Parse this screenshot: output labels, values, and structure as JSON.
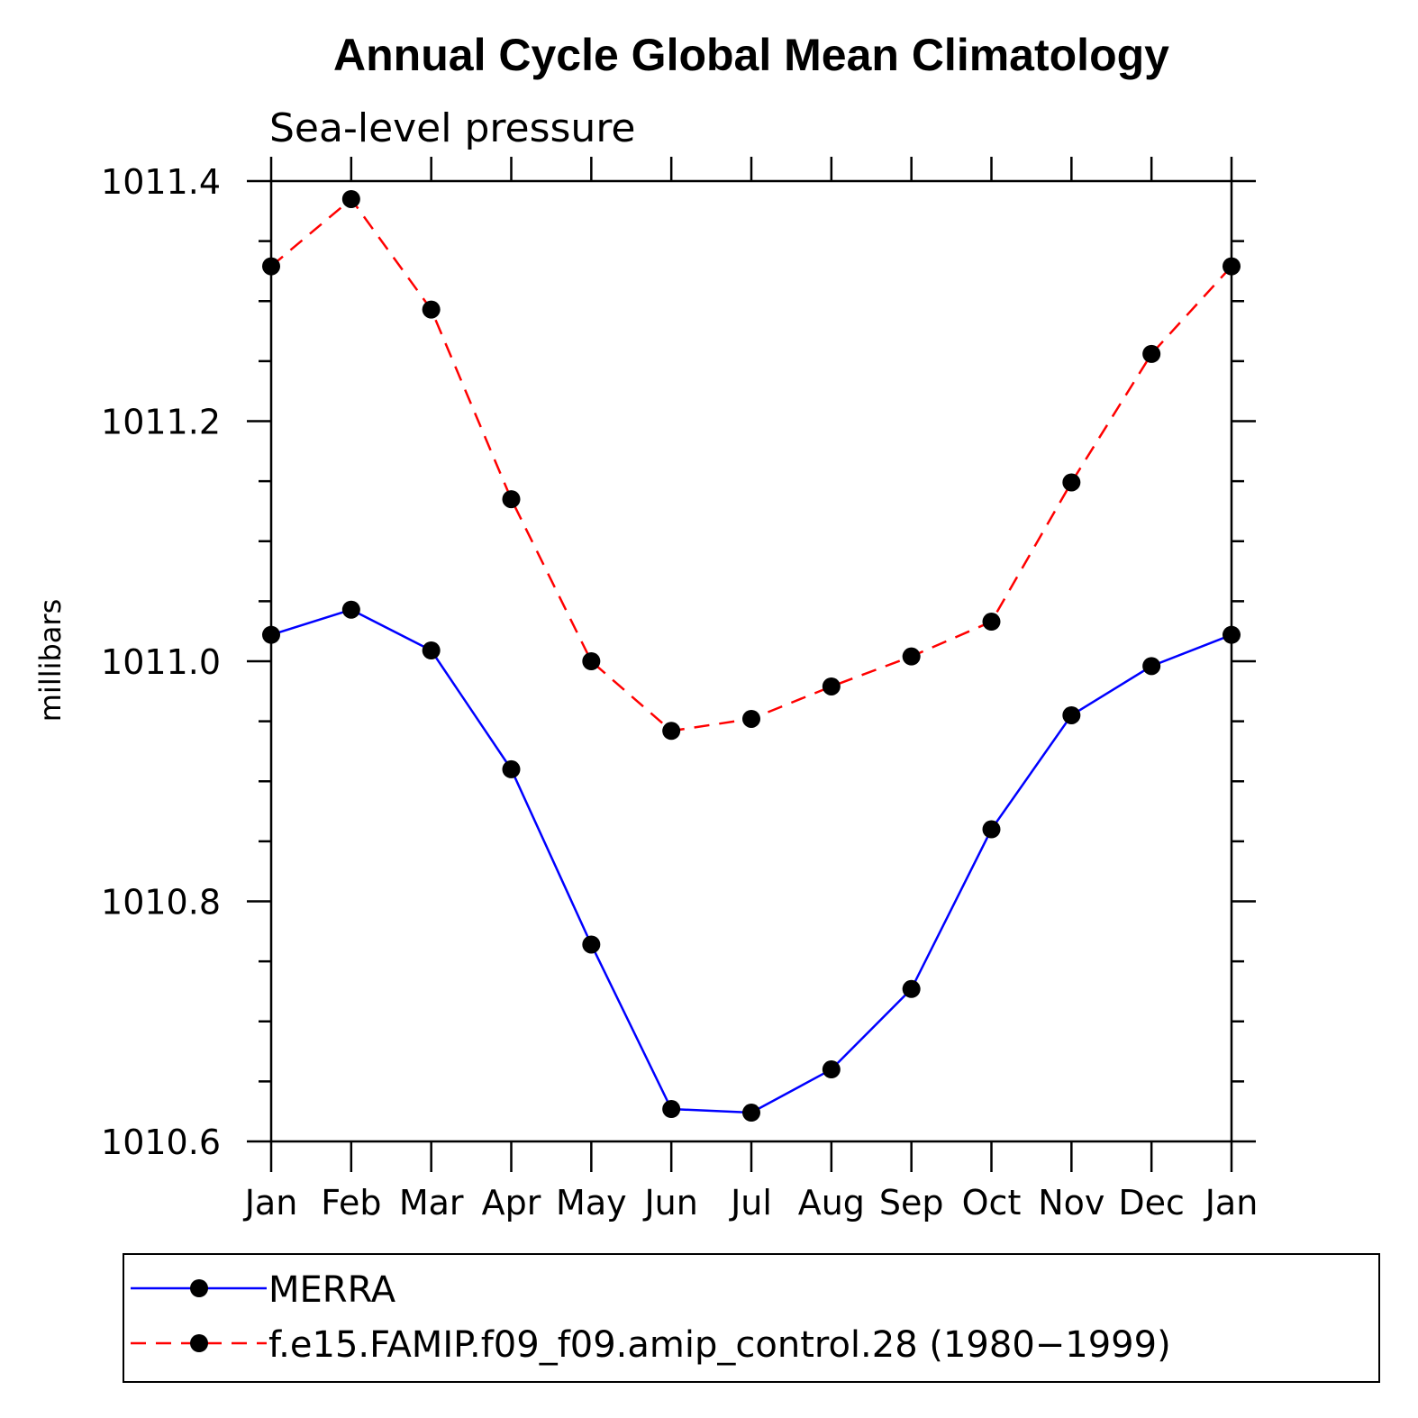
{
  "chart_data": {
    "type": "line",
    "title": "Annual Cycle Global Mean Climatology",
    "subtitle": "Sea-level pressure",
    "xlabel": "",
    "ylabel": "millibars",
    "categories": [
      "Jan",
      "Feb",
      "Mar",
      "Apr",
      "May",
      "Jun",
      "Jul",
      "Aug",
      "Sep",
      "Oct",
      "Nov",
      "Dec",
      "Jan"
    ],
    "ylim": [
      1010.6,
      1011.4
    ],
    "yticks": [
      1010.6,
      1010.8,
      1011.0,
      1011.2,
      1011.4
    ],
    "ytick_labels": [
      "1010.6",
      "1010.8",
      "1011.0",
      "1011.2",
      "1011.4"
    ],
    "yminor_step": 0.05,
    "grid": false,
    "legend_position": "bottom",
    "series": [
      {
        "name": "MERRA",
        "color": "#0000ff",
        "line_style": "solid",
        "marker": "filled-circle",
        "values": [
          1011.022,
          1011.043,
          1011.009,
          1010.91,
          1010.764,
          1010.627,
          1010.624,
          1010.66,
          1010.727,
          1010.86,
          1010.955,
          1010.996,
          1011.022
        ]
      },
      {
        "name": "f.e15.FAMIP.f09_f09.amip_control.28 (1980−1999)",
        "color": "#ff0000",
        "line_style": "dashed",
        "marker": "filled-circle",
        "values": [
          1011.329,
          1011.385,
          1011.293,
          1011.135,
          1011.0,
          1010.942,
          1010.952,
          1010.979,
          1011.004,
          1011.033,
          1011.149,
          1011.256,
          1011.329
        ]
      }
    ]
  }
}
